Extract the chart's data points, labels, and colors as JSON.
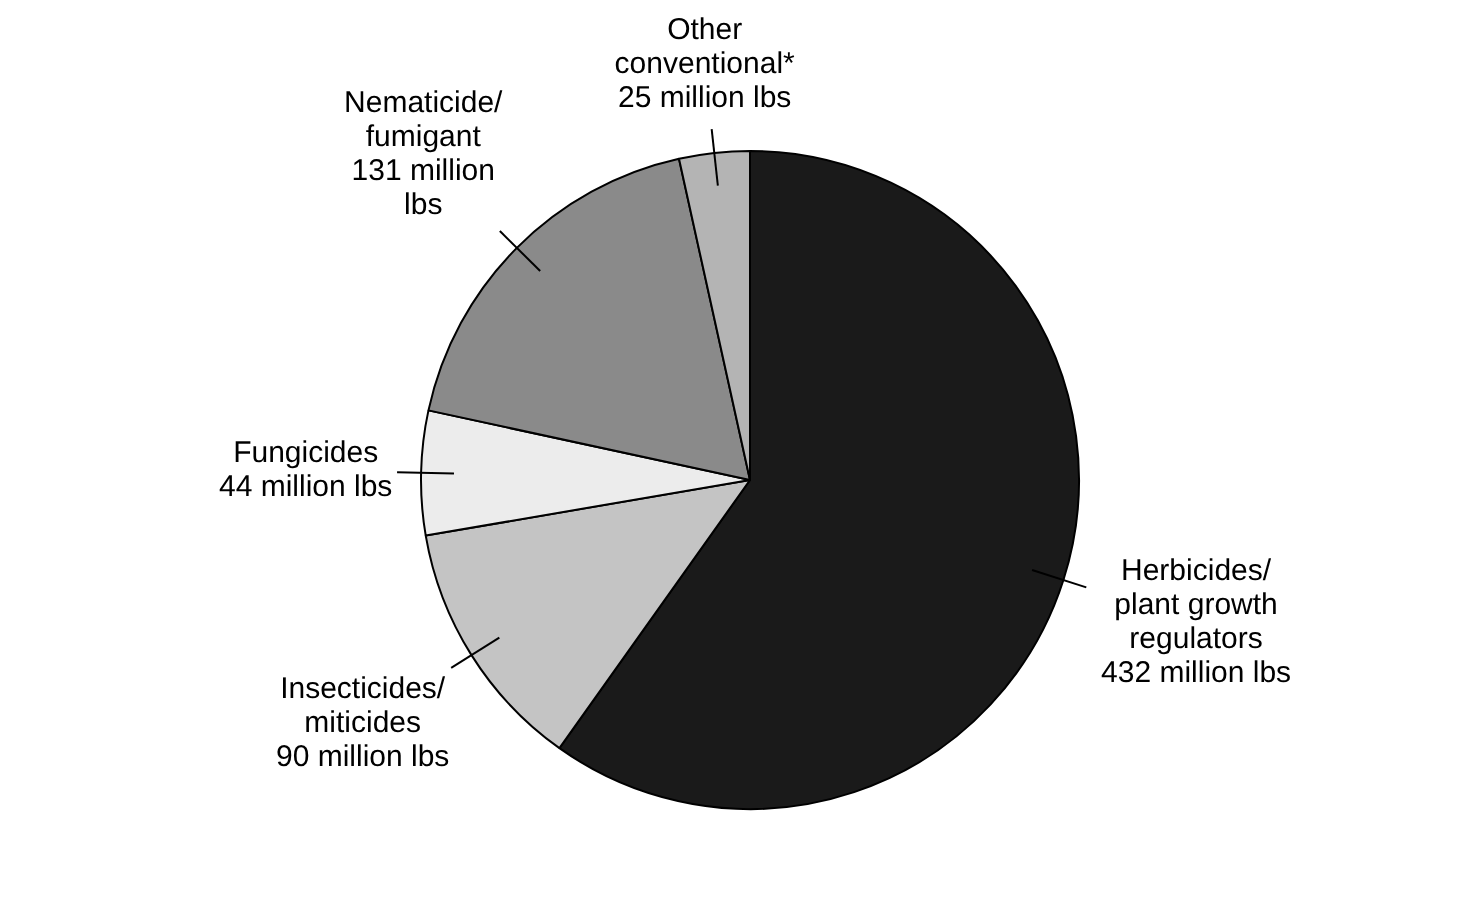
{
  "chart_data": {
    "type": "pie",
    "categories": [
      "Herbicides/\nplant growth\nregulators",
      "Insecticides/\nmiticides",
      "Fungicides",
      "Nematicide/\nfumigant",
      "Other\nconventional*"
    ],
    "values": [
      432,
      90,
      44,
      131,
      25
    ],
    "value_labels": [
      "432 million lbs",
      "90 million lbs",
      "44 million lbs",
      "131 million\nlbs",
      "25 million lbs"
    ],
    "colors": [
      "#1a1a1a",
      "#c4c4c4",
      "#ececec",
      "#8a8a8a",
      "#b4b4b4"
    ],
    "legend": false
  }
}
